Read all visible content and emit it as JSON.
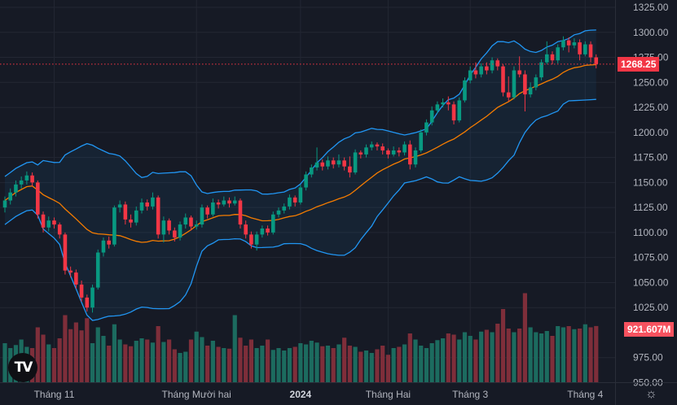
{
  "chart_data": {
    "type": "candlestick",
    "title": "",
    "y_ticks": [
      "1325.00",
      "1300.00",
      "1275.00",
      "1250.00",
      "1225.00",
      "1200.00",
      "1175.00",
      "1150.00",
      "1125.00",
      "1100.00",
      "1075.00",
      "1050.00",
      "1025.00",
      "975.00",
      "950.00"
    ],
    "ylim": [
      950,
      1325
    ],
    "x_labels": [
      {
        "label": "Tháng 11",
        "index": 9
      },
      {
        "label": "Tháng Mười hai",
        "index": 35
      },
      {
        "label": "2024",
        "index": 54,
        "bold": true
      },
      {
        "label": "Tháng Hai",
        "index": 70
      },
      {
        "label": "Tháng 3",
        "index": 85
      },
      {
        "label": "Tháng 4",
        "index": 106
      }
    ],
    "last_price": "1268.25",
    "last_volume": "921.607M",
    "indicators": [
      "SMA 20",
      "Bollinger Bands 20, 2"
    ],
    "colors": {
      "up": "#089981",
      "down": "#f23645",
      "up_volume": "#1c6b5f",
      "down_volume": "#7e2e3a",
      "band": "#2196f3",
      "sma": "#f57c00",
      "background": "#161a25"
    },
    "candles_ohlc": [
      [
        1125,
        1136,
        1120,
        1132
      ],
      [
        1132,
        1144,
        1128,
        1140
      ],
      [
        1140,
        1152,
        1136,
        1148
      ],
      [
        1148,
        1156,
        1144,
        1152
      ],
      [
        1152,
        1161,
        1148,
        1157
      ],
      [
        1157,
        1160,
        1146,
        1150
      ],
      [
        1150,
        1152,
        1114,
        1118
      ],
      [
        1118,
        1121,
        1100,
        1105
      ],
      [
        1105,
        1116,
        1101,
        1112
      ],
      [
        1112,
        1115,
        1104,
        1108
      ],
      [
        1108,
        1110,
        1094,
        1098
      ],
      [
        1098,
        1100,
        1058,
        1062
      ],
      [
        1062,
        1066,
        1055,
        1060
      ],
      [
        1060,
        1063,
        1044,
        1048
      ],
      [
        1048,
        1052,
        1031,
        1035
      ],
      [
        1035,
        1038,
        1021,
        1025
      ],
      [
        1025,
        1048,
        1020,
        1045
      ],
      [
        1045,
        1083,
        1043,
        1080
      ],
      [
        1080,
        1095,
        1076,
        1092
      ],
      [
        1092,
        1096,
        1084,
        1088
      ],
      [
        1088,
        1127,
        1086,
        1125
      ],
      [
        1125,
        1132,
        1120,
        1128
      ],
      [
        1128,
        1131,
        1108,
        1113
      ],
      [
        1113,
        1118,
        1105,
        1110
      ],
      [
        1110,
        1126,
        1107,
        1122
      ],
      [
        1122,
        1134,
        1119,
        1130
      ],
      [
        1130,
        1133,
        1122,
        1126
      ],
      [
        1126,
        1140,
        1123,
        1135
      ],
      [
        1135,
        1137,
        1094,
        1098
      ],
      [
        1098,
        1116,
        1090,
        1112
      ],
      [
        1112,
        1114,
        1098,
        1102
      ],
      [
        1102,
        1105,
        1091,
        1095
      ],
      [
        1095,
        1111,
        1092,
        1108
      ],
      [
        1108,
        1119,
        1104,
        1115
      ],
      [
        1115,
        1117,
        1102,
        1106
      ],
      [
        1106,
        1112,
        1103,
        1108
      ],
      [
        1108,
        1128,
        1105,
        1125
      ],
      [
        1125,
        1127,
        1114,
        1118
      ],
      [
        1118,
        1134,
        1116,
        1130
      ],
      [
        1130,
        1133,
        1124,
        1128
      ],
      [
        1128,
        1136,
        1126,
        1132
      ],
      [
        1132,
        1135,
        1125,
        1129
      ],
      [
        1129,
        1136,
        1127,
        1132
      ],
      [
        1132,
        1134,
        1104,
        1108
      ],
      [
        1108,
        1112,
        1094,
        1098
      ],
      [
        1098,
        1101,
        1084,
        1088
      ],
      [
        1088,
        1101,
        1082,
        1098
      ],
      [
        1098,
        1107,
        1095,
        1104
      ],
      [
        1104,
        1107,
        1097,
        1100
      ],
      [
        1100,
        1121,
        1098,
        1118
      ],
      [
        1118,
        1125,
        1115,
        1122
      ],
      [
        1122,
        1129,
        1119,
        1126
      ],
      [
        1126,
        1138,
        1123,
        1135
      ],
      [
        1135,
        1137,
        1126,
        1130
      ],
      [
        1130,
        1148,
        1128,
        1145
      ],
      [
        1145,
        1161,
        1142,
        1158
      ],
      [
        1158,
        1168,
        1155,
        1165
      ],
      [
        1165,
        1185,
        1162,
        1170
      ],
      [
        1170,
        1173,
        1162,
        1166
      ],
      [
        1166,
        1176,
        1163,
        1172
      ],
      [
        1172,
        1175,
        1164,
        1168
      ],
      [
        1168,
        1178,
        1165,
        1172
      ],
      [
        1172,
        1175,
        1162,
        1166
      ],
      [
        1166,
        1176,
        1155,
        1160
      ],
      [
        1160,
        1183,
        1158,
        1180
      ],
      [
        1180,
        1182,
        1174,
        1178
      ],
      [
        1178,
        1188,
        1175,
        1185
      ],
      [
        1185,
        1191,
        1182,
        1188
      ],
      [
        1188,
        1190,
        1182,
        1186
      ],
      [
        1186,
        1189,
        1178,
        1182
      ],
      [
        1182,
        1184,
        1174,
        1178
      ],
      [
        1178,
        1186,
        1176,
        1182
      ],
      [
        1182,
        1185,
        1176,
        1180
      ],
      [
        1180,
        1191,
        1177,
        1188
      ],
      [
        1188,
        1192,
        1163,
        1168
      ],
      [
        1168,
        1185,
        1165,
        1182
      ],
      [
        1182,
        1203,
        1180,
        1200
      ],
      [
        1200,
        1213,
        1197,
        1210
      ],
      [
        1210,
        1226,
        1207,
        1222
      ],
      [
        1222,
        1231,
        1219,
        1228
      ],
      [
        1228,
        1234,
        1225,
        1230
      ],
      [
        1230,
        1236,
        1222,
        1228
      ],
      [
        1228,
        1231,
        1208,
        1212
      ],
      [
        1212,
        1235,
        1210,
        1232
      ],
      [
        1232,
        1255,
        1230,
        1252
      ],
      [
        1252,
        1266,
        1249,
        1262
      ],
      [
        1262,
        1270,
        1254,
        1258
      ],
      [
        1258,
        1269,
        1255,
        1266
      ],
      [
        1266,
        1270,
        1258,
        1262
      ],
      [
        1262,
        1275,
        1259,
        1272
      ],
      [
        1272,
        1274,
        1262,
        1266
      ],
      [
        1266,
        1268,
        1236,
        1240
      ],
      [
        1240,
        1256,
        1231,
        1235
      ],
      [
        1235,
        1266,
        1233,
        1262
      ],
      [
        1262,
        1276,
        1255,
        1258
      ],
      [
        1258,
        1262,
        1221,
        1238
      ],
      [
        1238,
        1250,
        1235,
        1245
      ],
      [
        1245,
        1258,
        1242,
        1255
      ],
      [
        1255,
        1273,
        1252,
        1270
      ],
      [
        1270,
        1291,
        1268,
        1278
      ],
      [
        1278,
        1281,
        1268,
        1272
      ],
      [
        1272,
        1288,
        1269,
        1285
      ],
      [
        1285,
        1296,
        1282,
        1292
      ],
      [
        1292,
        1295,
        1280,
        1287
      ],
      [
        1287,
        1294,
        1284,
        1290
      ],
      [
        1290,
        1293,
        1272,
        1278
      ],
      [
        1278,
        1291,
        1276,
        1288
      ],
      [
        1288,
        1291,
        1270,
        1275
      ],
      [
        1275,
        1278,
        1264,
        1268.25
      ]
    ],
    "volume_millions": [
      640,
      560,
      610,
      700,
      580,
      560,
      900,
      780,
      620,
      560,
      720,
      1100,
      870,
      980,
      850,
      1050,
      640,
      900,
      760,
      600,
      950,
      700,
      620,
      590,
      680,
      720,
      700,
      650,
      920,
      660,
      700,
      540,
      480,
      500,
      700,
      830,
      740,
      600,
      680,
      580,
      560,
      550,
      1100,
      730,
      600,
      700,
      560,
      600,
      700,
      530,
      560,
      520,
      560,
      580,
      640,
      620,
      680,
      650,
      590,
      600,
      560,
      620,
      730,
      600,
      580,
      500,
      520,
      480,
      540,
      600,
      450,
      560,
      580,
      620,
      800,
      700,
      600,
      560,
      640,
      690,
      720,
      800,
      780,
      700,
      820,
      760,
      700,
      830,
      860,
      820,
      960,
      1200,
      880,
      820,
      880,
      1460,
      900,
      820,
      800,
      840,
      760,
      920,
      900,
      920,
      870,
      880,
      950,
      900,
      921.607
    ]
  },
  "logo": "TV",
  "settings_icon": "gear-icon"
}
